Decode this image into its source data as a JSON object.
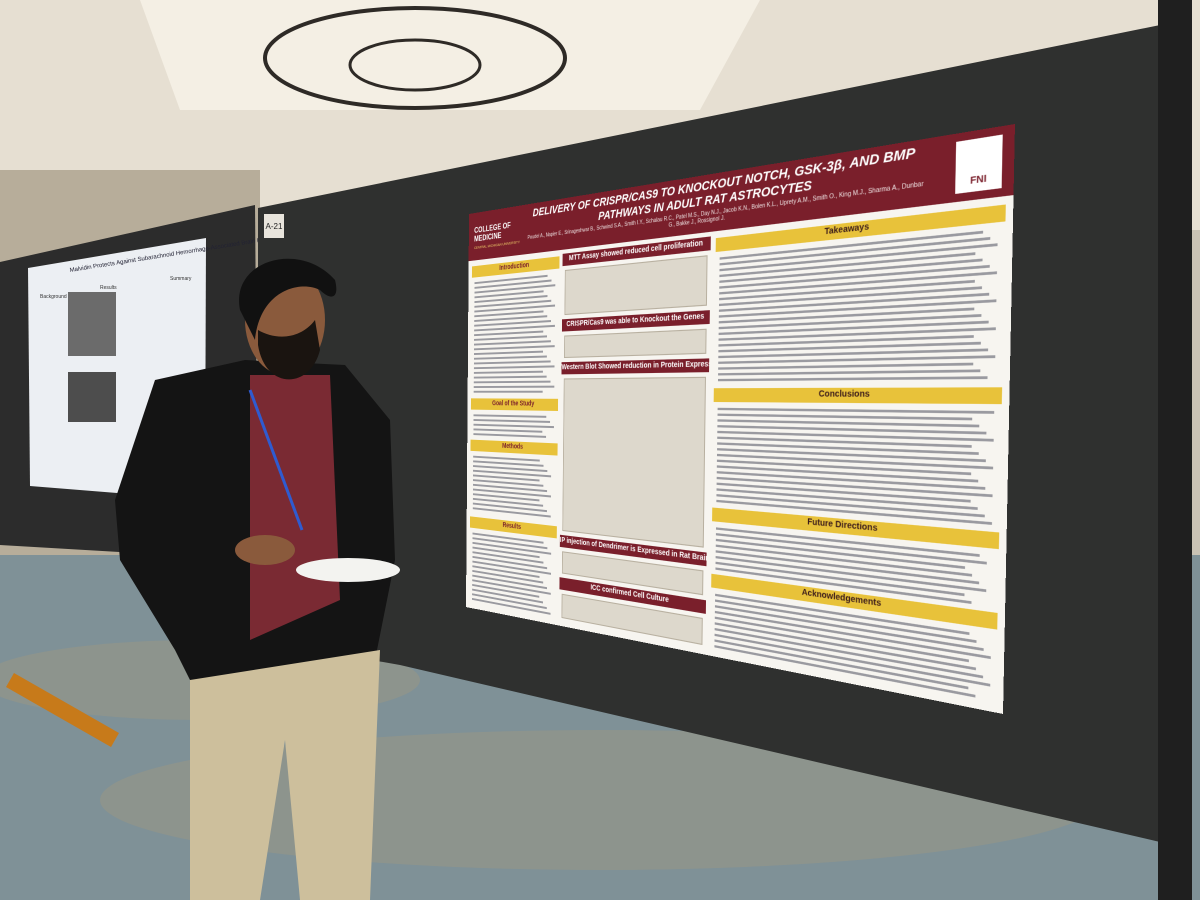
{
  "booth_label": "A-21",
  "left_poster": {
    "title": "Malvidin Protects Against Subarachnoid Hemorrhage-Associated Brain Injury",
    "sections": [
      "Background",
      "Results",
      "Summary"
    ]
  },
  "poster": {
    "institution": "COLLEGE OF MEDICINE",
    "university": "CENTRAL MICHIGAN UNIVERSITY",
    "logo": "FNI",
    "title": "DELIVERY OF CRISPR/CAS9 TO KNOCKOUT NOTCH, GSK-3β, AND BMP PATHWAYS IN ADULT RAT ASTROCYTES",
    "authors": "Poudel A., Napier E., Srinageshwar B., Schwind S.A., Smith I.Y., Schalau R.C., Patel M.S., Day N.J., Jacob K.N., Bolen K.L., Uprety A.M., Smith O., King M.J., Sharma A., Dunbar G., Bakke J., Rossignol J.",
    "left_column": [
      "Introduction",
      "Goal of the Study",
      "Methods",
      "Results"
    ],
    "middle_column": [
      "MTT Assay showed reduced cell proliferation",
      "CRISPR/Cas9 was able to Knockout the Genes",
      "Western Blot Showed reduction in Protein Expression",
      "IP injection of Dendrimer is Expressed in Rat Brain",
      "ICC confirmed Cell Culture"
    ],
    "right_column": [
      "Takeaways",
      "Conclusions",
      "Future Directions",
      "Acknowledgements"
    ]
  }
}
